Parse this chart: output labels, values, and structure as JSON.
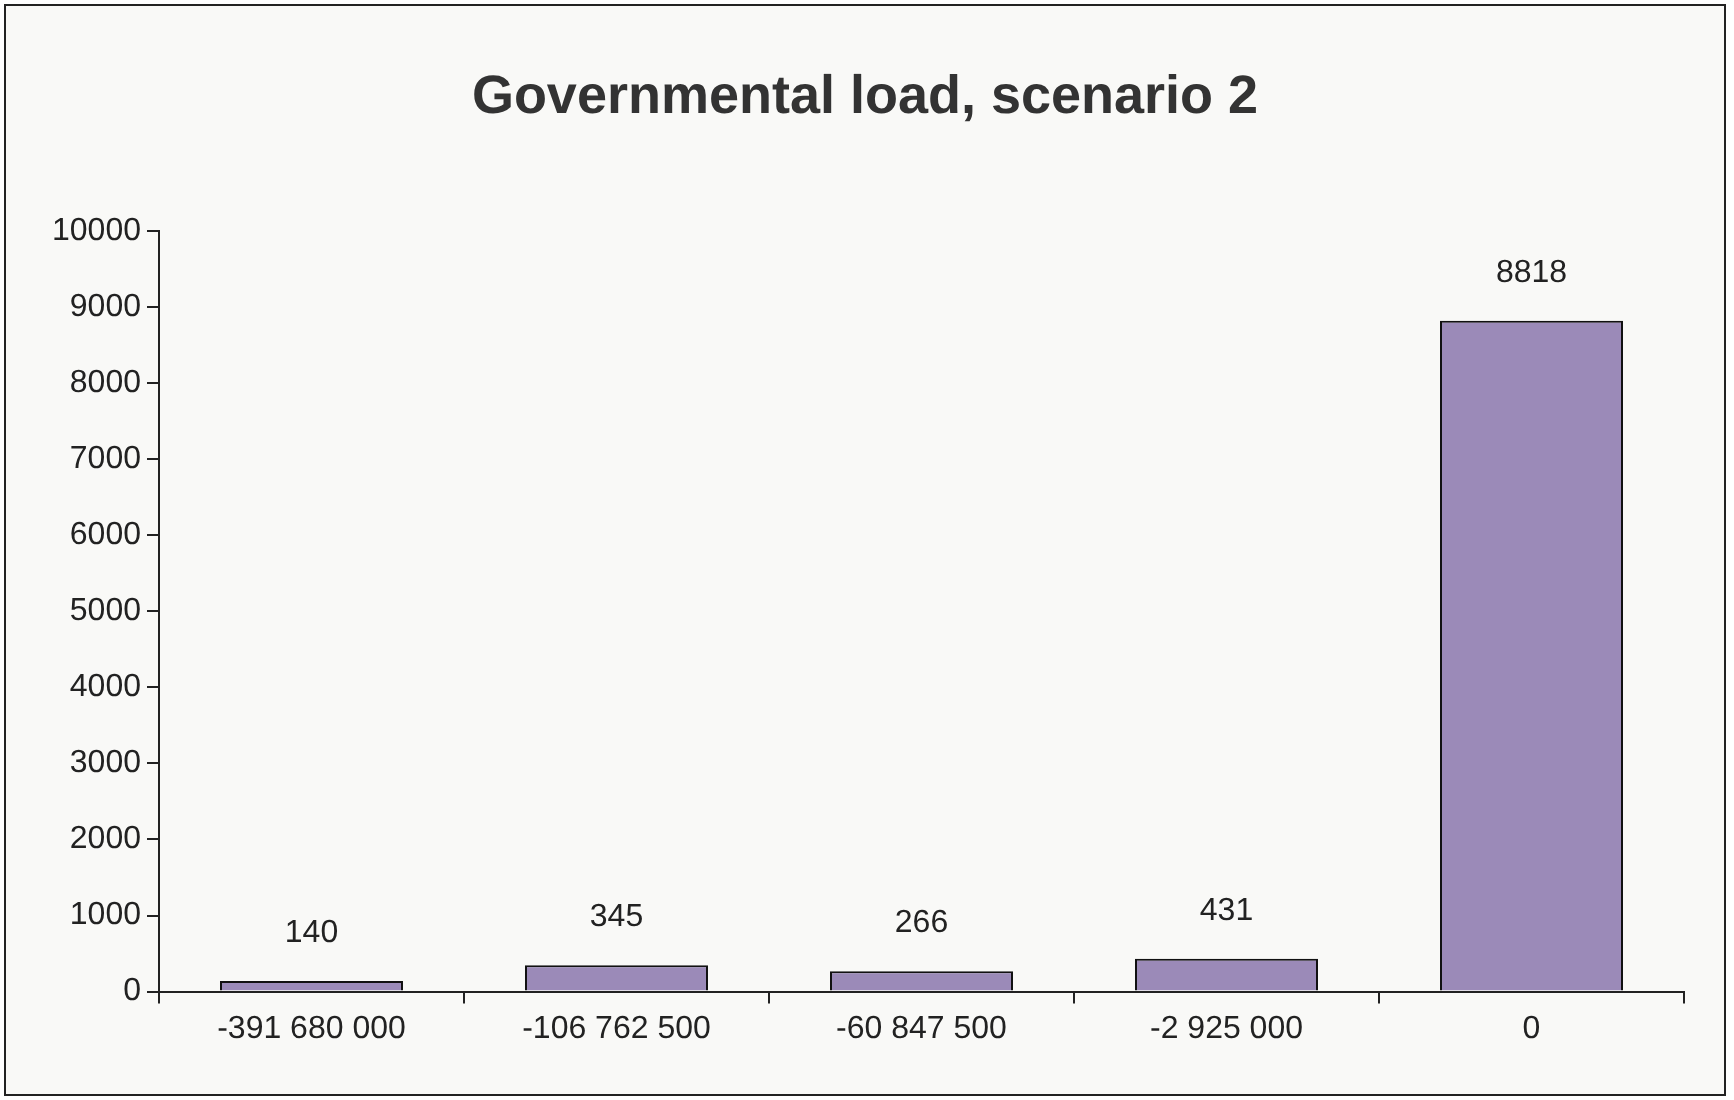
{
  "chart_data": {
    "type": "bar",
    "title": "Governmental load, scenario 2",
    "categories": [
      "-391 680 000",
      "-106 762 500",
      "-60 847 500",
      "-2 925 000",
      "0"
    ],
    "values": [
      140,
      345,
      266,
      431,
      8818
    ],
    "color": "#9b8ab8",
    "ylim": [
      0,
      10000
    ],
    "yticks": [
      0,
      1000,
      2000,
      3000,
      4000,
      5000,
      6000,
      7000,
      8000,
      9000,
      10000
    ],
    "grid": false,
    "legend": false,
    "data_labels": true
  }
}
